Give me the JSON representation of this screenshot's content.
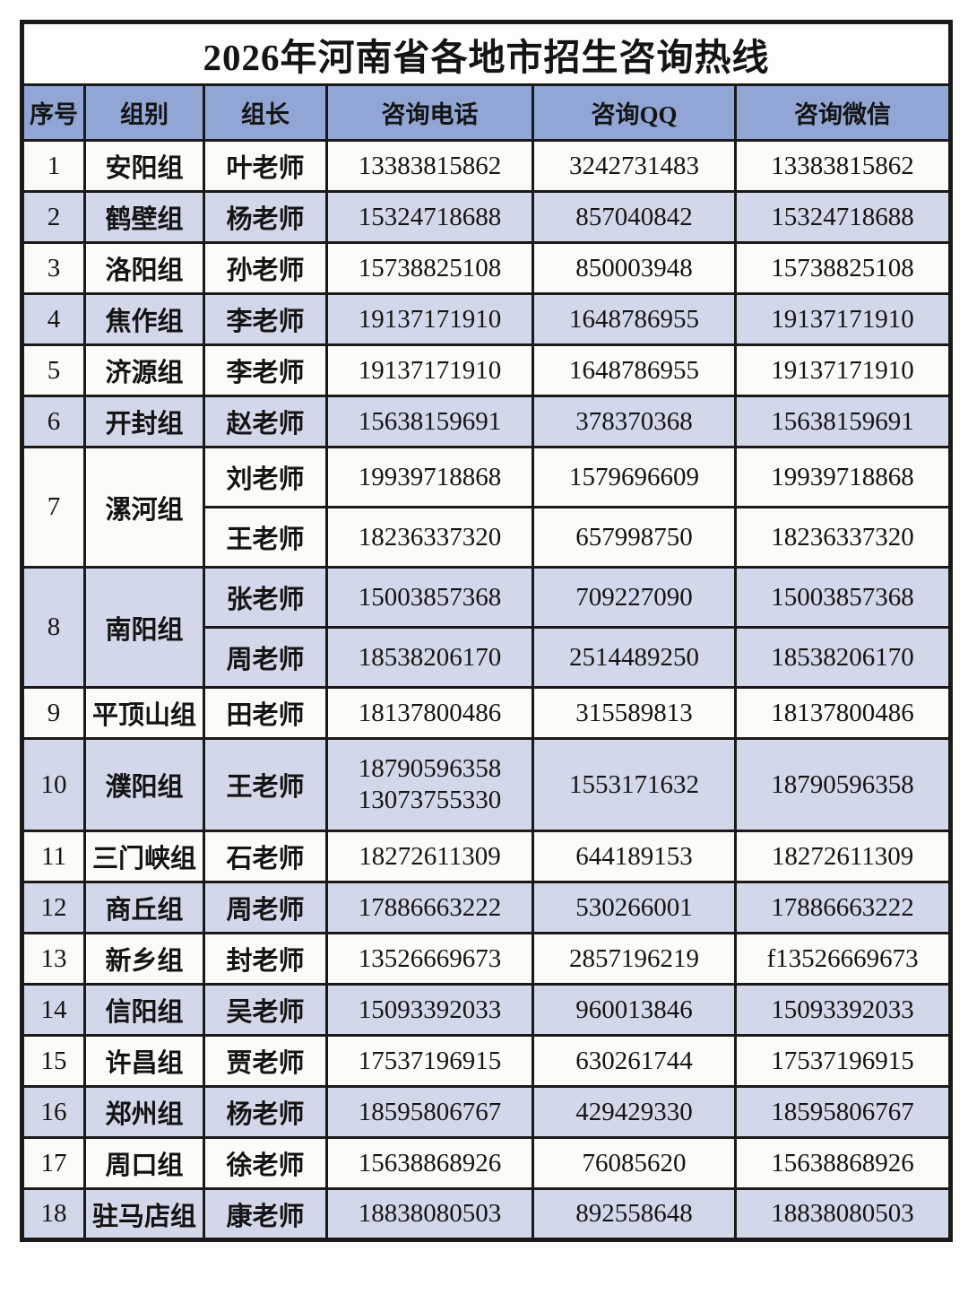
{
  "table": {
    "title": "2026年河南省各地市招生咨询热线",
    "columns": [
      "序号",
      "组别",
      "组长",
      "咨询电话",
      "咨询QQ",
      "咨询微信"
    ],
    "rows": [
      {
        "no": "1",
        "group": "安阳组",
        "shaded": false,
        "tall": false,
        "leaders": [
          {
            "name": "叶老师",
            "phones": [
              "13383815862"
            ],
            "qq": "3242731483",
            "wechat": "13383815862"
          }
        ]
      },
      {
        "no": "2",
        "group": "鹤壁组",
        "shaded": true,
        "tall": false,
        "leaders": [
          {
            "name": "杨老师",
            "phones": [
              "15324718688"
            ],
            "qq": "857040842",
            "wechat": "15324718688"
          }
        ]
      },
      {
        "no": "3",
        "group": "洛阳组",
        "shaded": false,
        "tall": false,
        "leaders": [
          {
            "name": "孙老师",
            "phones": [
              "15738825108"
            ],
            "qq": "850003948",
            "wechat": "15738825108"
          }
        ]
      },
      {
        "no": "4",
        "group": "焦作组",
        "shaded": true,
        "tall": false,
        "leaders": [
          {
            "name": "李老师",
            "phones": [
              "19137171910"
            ],
            "qq": "1648786955",
            "wechat": "19137171910"
          }
        ]
      },
      {
        "no": "5",
        "group": "济源组",
        "shaded": false,
        "tall": false,
        "leaders": [
          {
            "name": "李老师",
            "phones": [
              "19137171910"
            ],
            "qq": "1648786955",
            "wechat": "19137171910"
          }
        ]
      },
      {
        "no": "6",
        "group": "开封组",
        "shaded": true,
        "tall": false,
        "leaders": [
          {
            "name": "赵老师",
            "phones": [
              "15638159691"
            ],
            "qq": "378370368",
            "wechat": "15638159691"
          }
        ]
      },
      {
        "no": "7",
        "group": "漯河组",
        "shaded": false,
        "tall": false,
        "leaders": [
          {
            "name": "刘老师",
            "phones": [
              "19939718868"
            ],
            "qq": "1579696609",
            "wechat": "19939718868"
          },
          {
            "name": "王老师",
            "phones": [
              "18236337320"
            ],
            "qq": "657998750",
            "wechat": "18236337320"
          }
        ]
      },
      {
        "no": "8",
        "group": "南阳组",
        "shaded": true,
        "tall": false,
        "leaders": [
          {
            "name": "张老师",
            "phones": [
              "15003857368"
            ],
            "qq": "709227090",
            "wechat": "15003857368"
          },
          {
            "name": "周老师",
            "phones": [
              "18538206170"
            ],
            "qq": "2514489250",
            "wechat": "18538206170"
          }
        ]
      },
      {
        "no": "9",
        "group": "平顶山组",
        "shaded": false,
        "tall": false,
        "leaders": [
          {
            "name": "田老师",
            "phones": [
              "18137800486"
            ],
            "qq": "315589813",
            "wechat": "18137800486"
          }
        ]
      },
      {
        "no": "10",
        "group": "濮阳组",
        "shaded": true,
        "tall": true,
        "leaders": [
          {
            "name": "王老师",
            "phones": [
              "18790596358",
              "13073755330"
            ],
            "qq": "1553171632",
            "wechat": "18790596358"
          }
        ]
      },
      {
        "no": "11",
        "group": "三门峡组",
        "shaded": false,
        "tall": false,
        "leaders": [
          {
            "name": "石老师",
            "phones": [
              "18272611309"
            ],
            "qq": "644189153",
            "wechat": "18272611309"
          }
        ]
      },
      {
        "no": "12",
        "group": "商丘组",
        "shaded": true,
        "tall": false,
        "leaders": [
          {
            "name": "周老师",
            "phones": [
              "17886663222"
            ],
            "qq": "530266001",
            "wechat": "17886663222"
          }
        ]
      },
      {
        "no": "13",
        "group": "新乡组",
        "shaded": false,
        "tall": false,
        "leaders": [
          {
            "name": "封老师",
            "phones": [
              "13526669673"
            ],
            "qq": "2857196219",
            "wechat": "f13526669673"
          }
        ]
      },
      {
        "no": "14",
        "group": "信阳组",
        "shaded": true,
        "tall": false,
        "leaders": [
          {
            "name": "吴老师",
            "phones": [
              "15093392033"
            ],
            "qq": "960013846",
            "wechat": "15093392033"
          }
        ]
      },
      {
        "no": "15",
        "group": "许昌组",
        "shaded": false,
        "tall": false,
        "leaders": [
          {
            "name": "贾老师",
            "phones": [
              "17537196915"
            ],
            "qq": "630261744",
            "wechat": "17537196915"
          }
        ]
      },
      {
        "no": "16",
        "group": "郑州组",
        "shaded": true,
        "tall": false,
        "leaders": [
          {
            "name": "杨老师",
            "phones": [
              "18595806767"
            ],
            "qq": "429429330",
            "wechat": "18595806767"
          }
        ]
      },
      {
        "no": "17",
        "group": "周口组",
        "shaded": false,
        "tall": false,
        "leaders": [
          {
            "name": "徐老师",
            "phones": [
              "15638868926"
            ],
            "qq": "76085620",
            "wechat": "15638868926"
          }
        ]
      },
      {
        "no": "18",
        "group": "驻马店组",
        "shaded": true,
        "tall": false,
        "leaders": [
          {
            "name": "康老师",
            "phones": [
              "18838080503"
            ],
            "qq": "892558648",
            "wechat": "18838080503"
          }
        ]
      }
    ]
  },
  "colors": {
    "page_bg": "#fdfdfb",
    "border": "#1a1a1a",
    "header_bg": "#91a6d5",
    "shaded_row_bg": "#d2d8e9",
    "plain_row_bg": "#fbfbf8",
    "text": "#141414"
  }
}
